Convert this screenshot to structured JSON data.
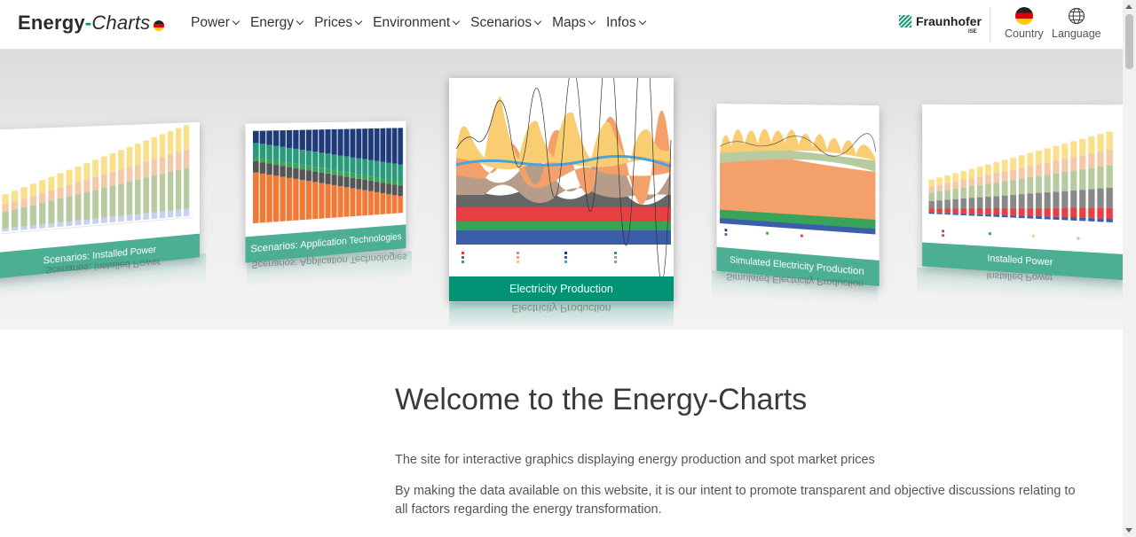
{
  "header": {
    "logo": {
      "part1": "Energy",
      "dash": "-",
      "part2": "Charts"
    },
    "nav": [
      {
        "label": "Power"
      },
      {
        "label": "Energy"
      },
      {
        "label": "Prices"
      },
      {
        "label": "Environment"
      },
      {
        "label": "Scenarios"
      },
      {
        "label": "Maps"
      },
      {
        "label": "Infos"
      }
    ],
    "fraunhofer": {
      "name": "Fraunhofer",
      "sub": "ISE"
    },
    "country_label": "Country",
    "language_label": "Language"
  },
  "carousel": {
    "slides": [
      {
        "caption": "Scenarios: Installed Power"
      },
      {
        "caption": "Scenarios: Application Technologies"
      },
      {
        "caption": "Electricity Production"
      },
      {
        "caption": "Simulated Electricity Production"
      },
      {
        "caption": "Installed Power"
      }
    ]
  },
  "content": {
    "title": "Welcome to the Energy-Charts",
    "paragraph1": "The site for interactive graphics displaying energy production and spot market prices",
    "paragraph2": "By making the data available on this website, it is our intent to promote transparent and objective discussions relating to all factors regarding the energy transformation."
  },
  "colors": {
    "brand_green": "#009374",
    "caption_green": "#4cae93"
  }
}
